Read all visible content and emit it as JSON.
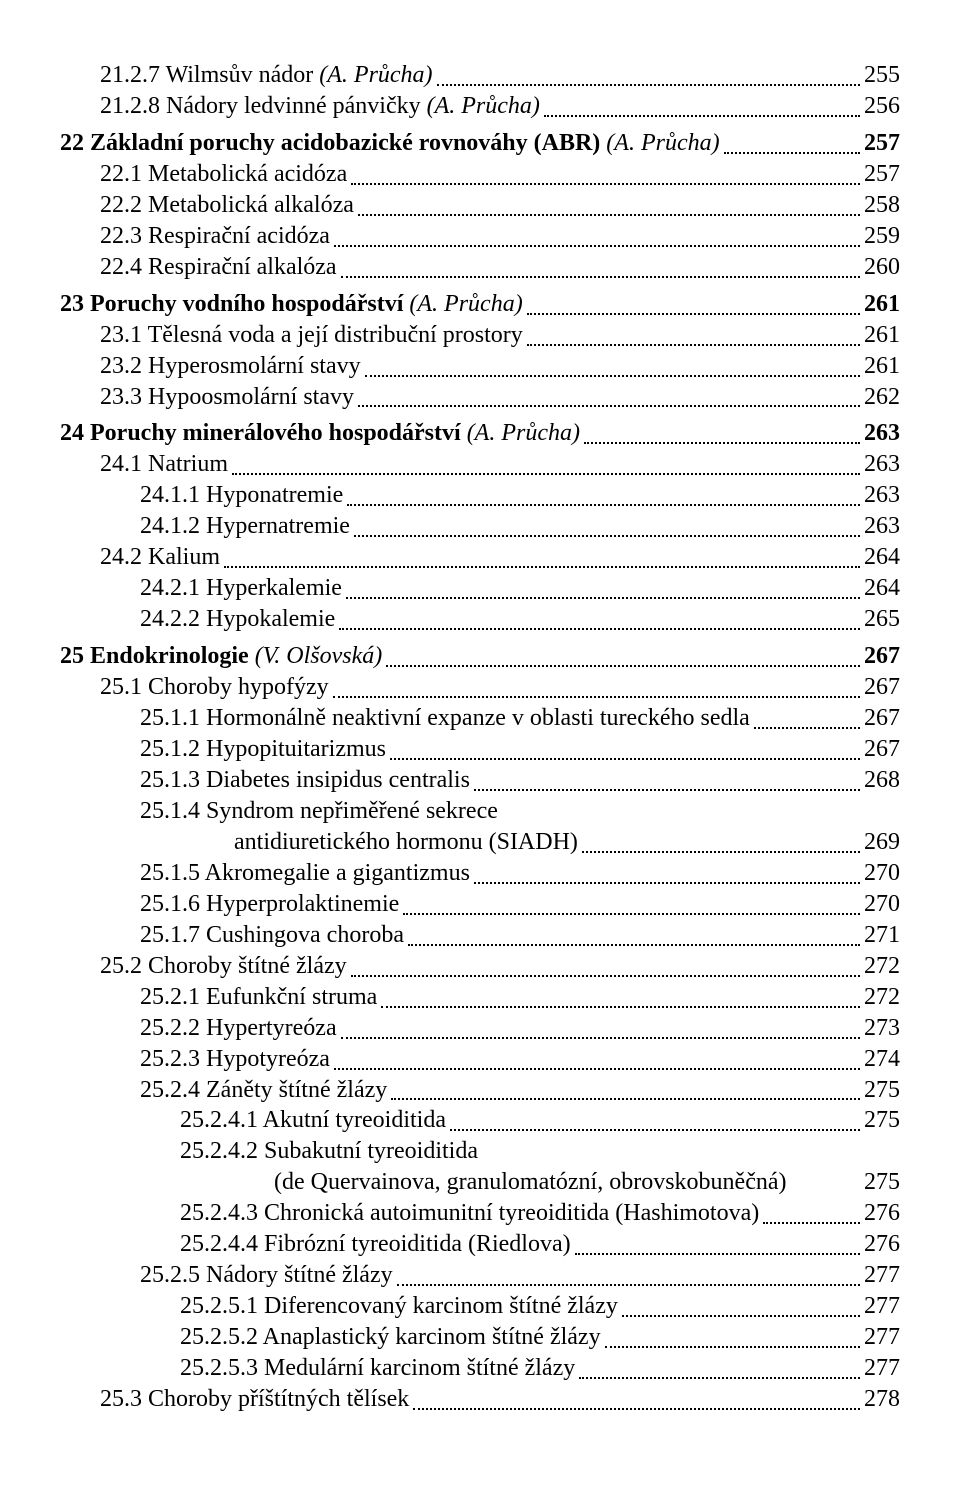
{
  "font_family": "Times New Roman",
  "text_color": "#000000",
  "background_color": "#ffffff",
  "base_fontsize": 24,
  "entries": [
    {
      "num": "21.2.7",
      "title": "Wilmsův nádor",
      "author": "(A. Průcha)",
      "page": "255",
      "indent": 1,
      "bold": false
    },
    {
      "num": "21.2.8",
      "title": "Nádory ledvinné pánvičky",
      "author": "(A. Průcha)",
      "page": "256",
      "indent": 1,
      "bold": false
    },
    {
      "num": "22",
      "title": "Základní poruchy acidobazické rovnováhy (ABR)",
      "author": "(A. Průcha)",
      "page": "257",
      "indent": 0,
      "bold": true,
      "gap": true
    },
    {
      "num": "22.1",
      "title": "Metabolická acidóza",
      "page": "257",
      "indent": 1,
      "bold": false
    },
    {
      "num": "22.2",
      "title": "Metabolická alkalóza",
      "page": "258",
      "indent": 1,
      "bold": false
    },
    {
      "num": "22.3",
      "title": "Respirační acidóza",
      "page": "259",
      "indent": 1,
      "bold": false
    },
    {
      "num": "22.4",
      "title": "Respirační alkalóza",
      "page": "260",
      "indent": 1,
      "bold": false
    },
    {
      "num": "23",
      "title": "Poruchy vodního hospodářství",
      "author": "(A. Průcha)",
      "page": "261",
      "indent": 0,
      "bold": true,
      "gap": true
    },
    {
      "num": "23.1",
      "title": "Tělesná voda a její distribuční prostory",
      "page": "261",
      "indent": 1,
      "bold": false
    },
    {
      "num": "23.2",
      "title": "Hyperosmolární stavy",
      "page": "261",
      "indent": 1,
      "bold": false
    },
    {
      "num": "23.3",
      "title": "Hypoosmolární stavy",
      "page": "262",
      "indent": 1,
      "bold": false
    },
    {
      "num": "24",
      "title": "Poruchy minerálového hospodářství",
      "author": "(A. Průcha)",
      "page": "263",
      "indent": 0,
      "bold": true,
      "gap": true
    },
    {
      "num": "24.1",
      "title": "Natrium",
      "page": "263",
      "indent": 1,
      "bold": false
    },
    {
      "num": "24.1.1",
      "title": "Hyponatremie",
      "page": "263",
      "indent": 2,
      "bold": false
    },
    {
      "num": "24.1.2",
      "title": "Hypernatremie",
      "page": "263",
      "indent": 2,
      "bold": false
    },
    {
      "num": "24.2",
      "title": "Kalium",
      "page": "264",
      "indent": 1,
      "bold": false
    },
    {
      "num": "24.2.1",
      "title": "Hyperkalemie",
      "page": "264",
      "indent": 2,
      "bold": false
    },
    {
      "num": "24.2.2",
      "title": "Hypokalemie",
      "page": "265",
      "indent": 2,
      "bold": false
    },
    {
      "num": "25",
      "title": "Endokrinologie",
      "author": "(V. Olšovská)",
      "page": "267",
      "indent": 0,
      "bold": true,
      "gap": true
    },
    {
      "num": "25.1",
      "title": "Choroby hypofýzy",
      "page": "267",
      "indent": 1,
      "bold": false
    },
    {
      "num": "25.1.1",
      "title": "Hormonálně neaktivní expanze v oblasti tureckého sedla",
      "page": "267",
      "indent": 2,
      "bold": false
    },
    {
      "num": "25.1.2",
      "title": "Hypopituitarizmus",
      "page": "267",
      "indent": 2,
      "bold": false
    },
    {
      "num": "25.1.3",
      "title": "Diabetes insipidus centralis",
      "page": "268",
      "indent": 2,
      "bold": false
    },
    {
      "num": "25.1.4",
      "title": "Syndrom nepřiměřené sekrece",
      "title2": "antidiuretického hormonu (SIADH)",
      "page": "269",
      "indent": 2,
      "bold": false,
      "multiline": true
    },
    {
      "num": "25.1.5",
      "title": "Akromegalie a gigantizmus",
      "page": "270",
      "indent": 2,
      "bold": false
    },
    {
      "num": "25.1.6",
      "title": "Hyperprolaktinemie",
      "page": "270",
      "indent": 2,
      "bold": false
    },
    {
      "num": "25.1.7",
      "title": "Cushingova choroba",
      "page": "271",
      "indent": 2,
      "bold": false
    },
    {
      "num": "25.2",
      "title": "Choroby štítné žlázy",
      "page": "272",
      "indent": 1,
      "bold": false
    },
    {
      "num": "25.2.1",
      "title": "Eufunkční struma",
      "page": "272",
      "indent": 2,
      "bold": false
    },
    {
      "num": "25.2.2",
      "title": "Hypertyreóza",
      "page": "273",
      "indent": 2,
      "bold": false
    },
    {
      "num": "25.2.3",
      "title": "Hypotyreóza",
      "page": "274",
      "indent": 2,
      "bold": false
    },
    {
      "num": "25.2.4",
      "title": "Záněty štítné žlázy",
      "page": "275",
      "indent": 2,
      "bold": false
    },
    {
      "num": "25.2.4.1",
      "title": "Akutní tyreoiditida",
      "page": "275",
      "indent": 3,
      "bold": false
    },
    {
      "num": "25.2.4.2",
      "title": "Subakutní tyreoiditida",
      "title2": "(de Quervainova, granulomatózní, obrovskobuněčná)",
      "page": "275",
      "indent": 3,
      "bold": false,
      "multiline": true,
      "tight": true
    },
    {
      "num": "25.2.4.3",
      "title": "Chronická autoimunitní tyreoiditida (Hashimotova)",
      "page": "276",
      "indent": 3,
      "bold": false
    },
    {
      "num": "25.2.4.4",
      "title": "Fibrózní tyreoiditida (Riedlova)",
      "page": "276",
      "indent": 3,
      "bold": false
    },
    {
      "num": "25.2.5",
      "title": "Nádory štítné žlázy",
      "page": "277",
      "indent": 2,
      "bold": false
    },
    {
      "num": "25.2.5.1",
      "title": "Diferencovaný karcinom štítné žlázy",
      "page": "277",
      "indent": 3,
      "bold": false
    },
    {
      "num": "25.2.5.2",
      "title": "Anaplastický karcinom štítné žlázy",
      "page": "277",
      "indent": 3,
      "bold": false
    },
    {
      "num": "25.2.5.3",
      "title": "Medulární karcinom štítné žlázy",
      "page": "277",
      "indent": 3,
      "bold": false
    },
    {
      "num": "25.3",
      "title": "Choroby příštítných tělísek",
      "page": "278",
      "indent": 1,
      "bold": false
    }
  ]
}
